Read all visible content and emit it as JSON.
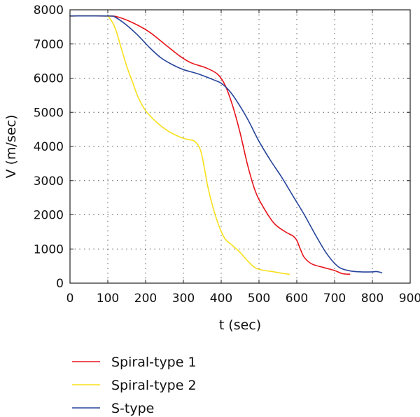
{
  "chart_data": {
    "type": "line",
    "xlabel": "t (sec)",
    "ylabel": "V (m/sec)",
    "xlim": [
      0,
      900
    ],
    "ylim": [
      0,
      8000
    ],
    "xticks": [
      0,
      100,
      200,
      300,
      400,
      500,
      600,
      700,
      800,
      900
    ],
    "yticks": [
      0,
      1000,
      2000,
      3000,
      4000,
      5000,
      6000,
      7000,
      8000
    ],
    "grid": true,
    "grid_style": "dotted",
    "legend_position": "below",
    "series": [
      {
        "name": "Spiral-type 1",
        "color": "#e8141b",
        "x": [
          0,
          100,
          130,
          170,
          210,
          250,
          290,
          320,
          360,
          390,
          410,
          430,
          450,
          470,
          490,
          510,
          540,
          570,
          590,
          600,
          610,
          620,
          640,
          670,
          700,
          720,
          740
        ],
        "y": [
          7820,
          7820,
          7780,
          7600,
          7350,
          7000,
          6650,
          6450,
          6300,
          6120,
          5800,
          5200,
          4400,
          3450,
          2700,
          2250,
          1750,
          1500,
          1380,
          1250,
          980,
          750,
          560,
          460,
          370,
          280,
          260
        ]
      },
      {
        "name": "Spiral-type 2",
        "color": "#f7e01c",
        "x": [
          0,
          90,
          105,
          120,
          135,
          150,
          165,
          180,
          200,
          230,
          260,
          290,
          310,
          330,
          345,
          355,
          365,
          380,
          395,
          410,
          430,
          450,
          470,
          490,
          510,
          540,
          560,
          580
        ],
        "y": [
          7820,
          7820,
          7750,
          7450,
          6900,
          6350,
          5900,
          5450,
          5050,
          4700,
          4450,
          4280,
          4210,
          4150,
          3900,
          3400,
          2800,
          2150,
          1650,
          1300,
          1100,
          900,
          650,
          450,
          380,
          330,
          290,
          260
        ]
      },
      {
        "name": "S-type",
        "color": "#26449a",
        "x": [
          0,
          100,
          120,
          150,
          180,
          210,
          240,
          270,
          300,
          340,
          380,
          400,
          420,
          440,
          470,
          500,
          530,
          560,
          590,
          620,
          650,
          680,
          710,
          740,
          770,
          800,
          810,
          820,
          825
        ],
        "y": [
          7820,
          7820,
          7780,
          7550,
          7250,
          6900,
          6600,
          6400,
          6250,
          6120,
          5950,
          5850,
          5650,
          5350,
          4800,
          4150,
          3600,
          3100,
          2550,
          2000,
          1400,
          850,
          480,
          360,
          330,
          330,
          340,
          320,
          300
        ]
      }
    ]
  }
}
